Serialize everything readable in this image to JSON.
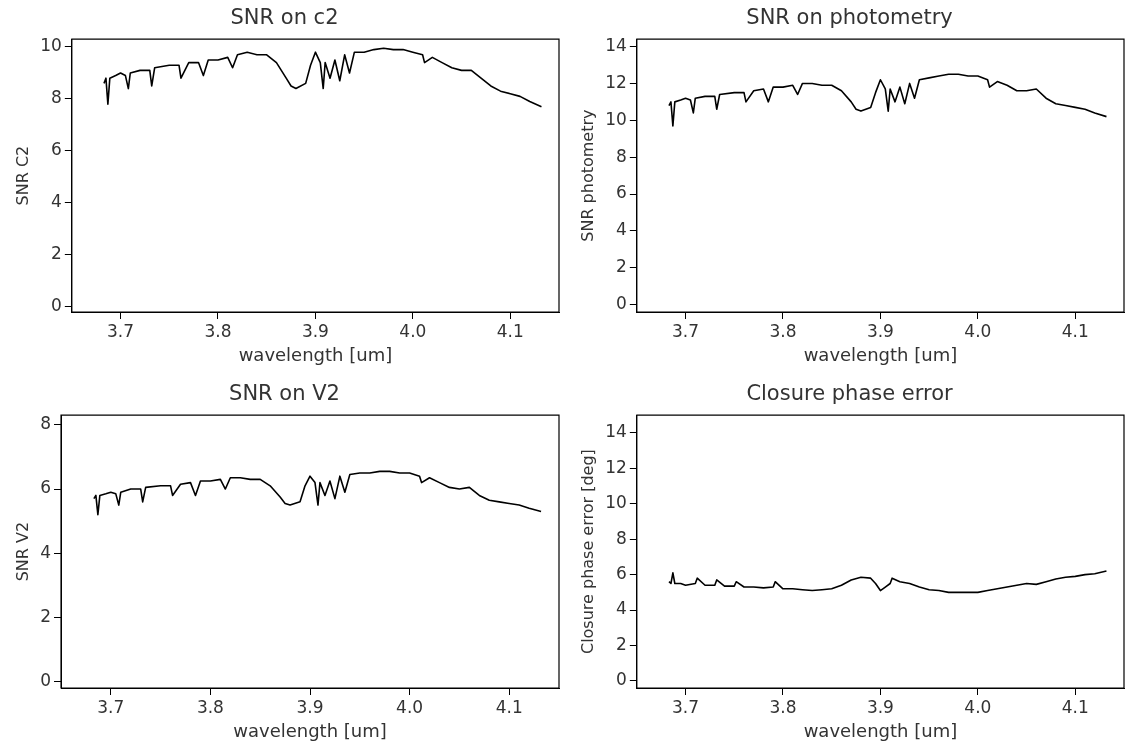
{
  "chart_data": [
    {
      "type": "line",
      "title": "SNR on c2",
      "xlabel": "wavelength [um]",
      "ylabel": "SNR C2",
      "xlim": [
        3.65,
        4.15
      ],
      "xticks": [
        {
          "value": 3.7,
          "label": "3.7"
        },
        {
          "value": 3.8,
          "label": "3.8"
        },
        {
          "value": 3.9,
          "label": "3.9"
        },
        {
          "value": 4.0,
          "label": "4.0"
        },
        {
          "value": 4.1,
          "label": "4.1"
        }
      ],
      "ylim": [
        -0.2,
        10.3
      ],
      "yticks": [
        0,
        2,
        4,
        6,
        8,
        10
      ],
      "grid": false,
      "legend": false,
      "marker": "none",
      "line_style": "solid",
      "x": [
        3.683,
        3.685,
        3.687,
        3.689,
        3.695,
        3.7,
        3.705,
        3.708,
        3.71,
        3.72,
        3.73,
        3.732,
        3.735,
        3.75,
        3.76,
        3.762,
        3.77,
        3.78,
        3.785,
        3.79,
        3.8,
        3.81,
        3.815,
        3.82,
        3.83,
        3.84,
        3.85,
        3.86,
        3.87,
        3.875,
        3.88,
        3.89,
        3.895,
        3.9,
        3.905,
        3.908,
        3.91,
        3.915,
        3.92,
        3.925,
        3.93,
        3.935,
        3.94,
        3.95,
        3.96,
        3.97,
        3.98,
        3.99,
        4.0,
        4.01,
        4.012,
        4.02,
        4.03,
        4.04,
        4.05,
        4.06,
        4.07,
        4.08,
        4.09,
        4.1,
        4.11,
        4.12,
        4.132
      ],
      "series": [
        {
          "color": "#000000",
          "values": [
            8.6,
            8.8,
            7.8,
            8.8,
            8.9,
            9.0,
            8.9,
            8.4,
            9.0,
            9.1,
            9.1,
            8.5,
            9.2,
            9.3,
            9.3,
            8.8,
            9.4,
            9.4,
            8.9,
            9.5,
            9.5,
            9.6,
            9.2,
            9.7,
            9.8,
            9.7,
            9.7,
            9.4,
            8.8,
            8.5,
            8.4,
            8.6,
            9.3,
            9.8,
            9.4,
            8.4,
            9.4,
            8.8,
            9.5,
            8.7,
            9.7,
            9.0,
            9.8,
            9.8,
            9.9,
            9.95,
            9.9,
            9.9,
            9.8,
            9.7,
            9.4,
            9.6,
            9.4,
            9.2,
            9.1,
            9.1,
            8.8,
            8.5,
            8.3,
            8.2,
            8.1,
            7.9,
            7.7
          ]
        }
      ]
    },
    {
      "type": "line",
      "title": "SNR on photometry",
      "xlabel": "wavelength [um]",
      "ylabel": "SNR photometry",
      "xlim": [
        3.65,
        4.15
      ],
      "xticks": [
        {
          "value": 3.7,
          "label": "3.7"
        },
        {
          "value": 3.8,
          "label": "3.8"
        },
        {
          "value": 3.9,
          "label": "3.9"
        },
        {
          "value": 4.0,
          "label": "4.0"
        },
        {
          "value": 4.1,
          "label": "4.1"
        }
      ],
      "ylim": [
        -0.4,
        14.4
      ],
      "yticks": [
        0,
        2,
        4,
        6,
        8,
        10,
        12,
        14
      ],
      "grid": false,
      "legend": false,
      "marker": "none",
      "line_style": "solid",
      "x": [
        3.683,
        3.685,
        3.687,
        3.689,
        3.695,
        3.7,
        3.705,
        3.708,
        3.71,
        3.72,
        3.73,
        3.732,
        3.735,
        3.75,
        3.76,
        3.762,
        3.77,
        3.78,
        3.785,
        3.79,
        3.8,
        3.81,
        3.815,
        3.82,
        3.83,
        3.84,
        3.85,
        3.86,
        3.87,
        3.875,
        3.88,
        3.89,
        3.895,
        3.9,
        3.905,
        3.908,
        3.91,
        3.915,
        3.92,
        3.925,
        3.93,
        3.935,
        3.94,
        3.95,
        3.96,
        3.97,
        3.98,
        3.99,
        4.0,
        4.01,
        4.012,
        4.02,
        4.03,
        4.04,
        4.05,
        4.06,
        4.07,
        4.08,
        4.09,
        4.1,
        4.11,
        4.12,
        4.132
      ],
      "series": [
        {
          "color": "#000000",
          "values": [
            10.8,
            11.0,
            9.7,
            11.0,
            11.1,
            11.2,
            11.1,
            10.4,
            11.2,
            11.3,
            11.3,
            10.6,
            11.4,
            11.5,
            11.5,
            11.0,
            11.6,
            11.7,
            11.0,
            11.8,
            11.8,
            11.9,
            11.4,
            12.0,
            12.0,
            11.9,
            11.9,
            11.6,
            11.0,
            10.6,
            10.5,
            10.7,
            11.5,
            12.2,
            11.7,
            10.5,
            11.7,
            11.0,
            11.8,
            10.9,
            12.0,
            11.2,
            12.2,
            12.3,
            12.4,
            12.5,
            12.5,
            12.4,
            12.4,
            12.2,
            11.8,
            12.1,
            11.9,
            11.6,
            11.6,
            11.7,
            11.2,
            10.9,
            10.8,
            10.7,
            10.6,
            10.4,
            10.2
          ]
        }
      ]
    },
    {
      "type": "line",
      "title": "SNR on V2",
      "xlabel": "wavelength [um]",
      "ylabel": "SNR V2",
      "xlim": [
        3.65,
        4.15
      ],
      "xticks": [
        {
          "value": 3.7,
          "label": "3.7"
        },
        {
          "value": 3.8,
          "label": "3.8"
        },
        {
          "value": 3.9,
          "label": "3.9"
        },
        {
          "value": 4.0,
          "label": "4.0"
        },
        {
          "value": 4.1,
          "label": "4.1"
        }
      ],
      "ylim": [
        -0.2,
        8.3
      ],
      "yticks": [
        0,
        2,
        4,
        6,
        8
      ],
      "grid": false,
      "legend": false,
      "marker": "none",
      "line_style": "solid",
      "x": [
        3.683,
        3.685,
        3.687,
        3.689,
        3.695,
        3.7,
        3.705,
        3.708,
        3.71,
        3.72,
        3.73,
        3.732,
        3.735,
        3.75,
        3.76,
        3.762,
        3.77,
        3.78,
        3.785,
        3.79,
        3.8,
        3.81,
        3.815,
        3.82,
        3.83,
        3.84,
        3.85,
        3.86,
        3.87,
        3.875,
        3.88,
        3.89,
        3.895,
        3.9,
        3.905,
        3.908,
        3.91,
        3.915,
        3.92,
        3.925,
        3.93,
        3.935,
        3.94,
        3.95,
        3.96,
        3.97,
        3.98,
        3.99,
        4.0,
        4.01,
        4.012,
        4.02,
        4.03,
        4.04,
        4.05,
        4.06,
        4.07,
        4.08,
        4.09,
        4.1,
        4.11,
        4.12,
        4.132
      ],
      "series": [
        {
          "color": "#000000",
          "values": [
            5.7,
            5.8,
            5.2,
            5.8,
            5.85,
            5.9,
            5.85,
            5.5,
            5.9,
            6.0,
            6.0,
            5.6,
            6.05,
            6.1,
            6.1,
            5.8,
            6.15,
            6.2,
            5.8,
            6.25,
            6.25,
            6.3,
            6.0,
            6.35,
            6.35,
            6.3,
            6.3,
            6.1,
            5.75,
            5.55,
            5.5,
            5.6,
            6.1,
            6.4,
            6.2,
            5.5,
            6.2,
            5.8,
            6.25,
            5.7,
            6.4,
            5.9,
            6.45,
            6.5,
            6.5,
            6.55,
            6.55,
            6.5,
            6.5,
            6.4,
            6.2,
            6.35,
            6.2,
            6.05,
            6.0,
            6.05,
            5.8,
            5.65,
            5.6,
            5.55,
            5.5,
            5.4,
            5.3
          ]
        }
      ]
    },
    {
      "type": "line",
      "title": "Closure phase error",
      "xlabel": "wavelength [um]",
      "ylabel": "Closure phase error [deg]",
      "xlim": [
        3.65,
        4.15
      ],
      "xticks": [
        {
          "value": 3.7,
          "label": "3.7"
        },
        {
          "value": 3.8,
          "label": "3.8"
        },
        {
          "value": 3.9,
          "label": "3.9"
        },
        {
          "value": 4.0,
          "label": "4.0"
        },
        {
          "value": 4.1,
          "label": "4.1"
        }
      ],
      "ylim": [
        -0.4,
        15
      ],
      "yticks": [
        0,
        2,
        4,
        6,
        8,
        10,
        12,
        14
      ],
      "grid": false,
      "legend": false,
      "marker": "none",
      "line_style": "solid",
      "x": [
        3.683,
        3.685,
        3.687,
        3.689,
        3.695,
        3.7,
        3.71,
        3.712,
        3.72,
        3.73,
        3.732,
        3.74,
        3.75,
        3.752,
        3.76,
        3.77,
        3.78,
        3.79,
        3.792,
        3.8,
        3.81,
        3.82,
        3.83,
        3.84,
        3.85,
        3.86,
        3.87,
        3.88,
        3.89,
        3.895,
        3.9,
        3.905,
        3.91,
        3.912,
        3.92,
        3.93,
        3.94,
        3.95,
        3.96,
        3.97,
        3.98,
        3.99,
        4.0,
        4.01,
        4.02,
        4.03,
        4.04,
        4.05,
        4.06,
        4.07,
        4.08,
        4.09,
        4.1,
        4.11,
        4.12,
        4.132
      ],
      "series": [
        {
          "color": "#000000",
          "values": [
            5.6,
            5.5,
            6.1,
            5.5,
            5.5,
            5.4,
            5.5,
            5.8,
            5.4,
            5.4,
            5.7,
            5.35,
            5.35,
            5.6,
            5.3,
            5.3,
            5.25,
            5.3,
            5.6,
            5.2,
            5.2,
            5.15,
            5.1,
            5.15,
            5.2,
            5.4,
            5.7,
            5.85,
            5.8,
            5.5,
            5.1,
            5.3,
            5.5,
            5.8,
            5.6,
            5.5,
            5.3,
            5.15,
            5.1,
            5.0,
            5.0,
            5.0,
            5.0,
            5.1,
            5.2,
            5.3,
            5.4,
            5.5,
            5.45,
            5.6,
            5.75,
            5.85,
            5.9,
            6.0,
            6.05,
            6.2
          ]
        }
      ]
    }
  ]
}
